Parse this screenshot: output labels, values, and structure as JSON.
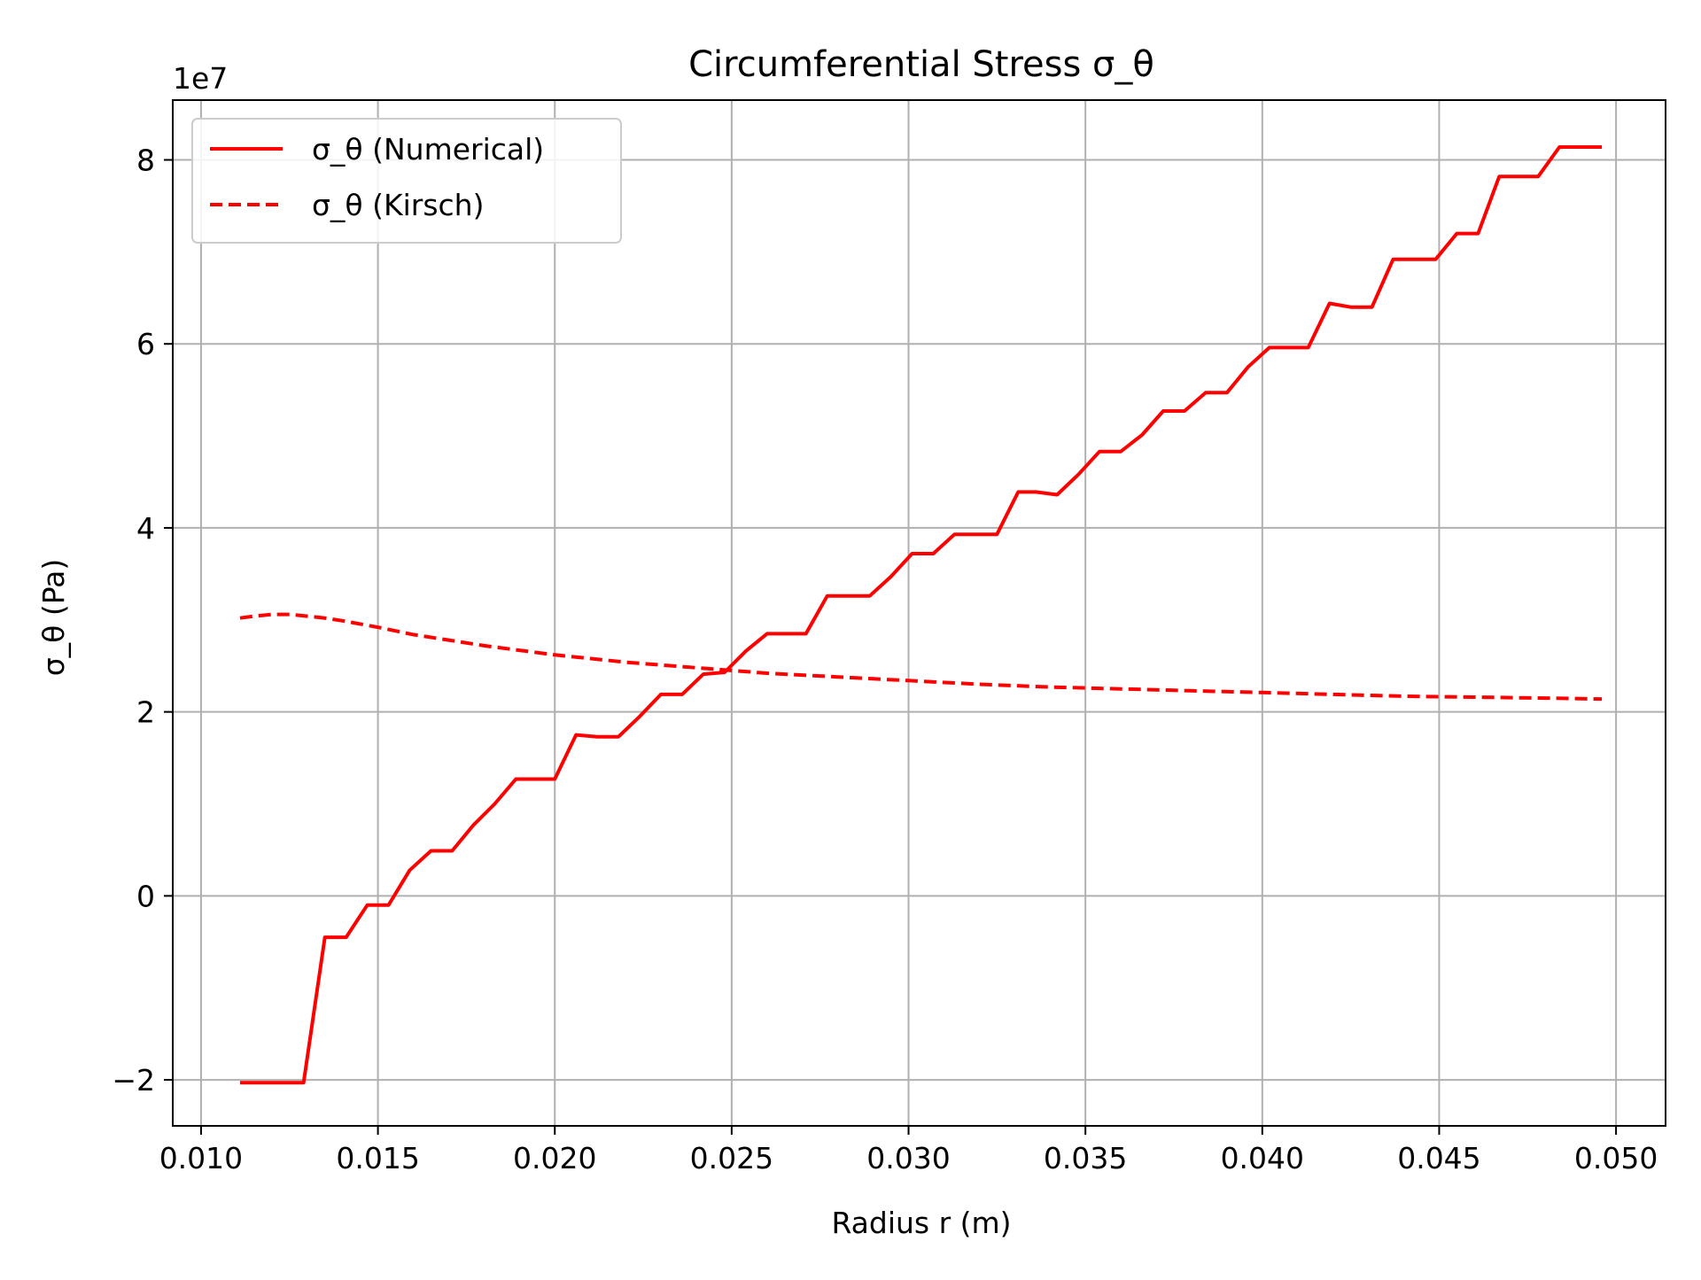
{
  "chart_data": {
    "type": "line",
    "title": "Circumferential Stress σ_θ",
    "xlabel": "Radius r (m)",
    "ylabel": "σ_θ (Pa)",
    "y_offset_label": "1e7",
    "y_scale": 10000000,
    "xlim": [
      0.0092,
      0.0514
    ],
    "ylim": [
      -25000000.0,
      86500000.0
    ],
    "x_ticks": [
      0.01,
      0.015,
      0.02,
      0.025,
      0.03,
      0.035,
      0.04,
      0.045,
      0.05
    ],
    "x_tick_labels": [
      "0.010",
      "0.015",
      "0.020",
      "0.025",
      "0.030",
      "0.035",
      "0.040",
      "0.045",
      "0.050"
    ],
    "y_ticks": [
      -20000000.0,
      0,
      20000000.0,
      40000000.0,
      60000000.0,
      80000000.0
    ],
    "y_tick_labels": [
      "−2",
      "0",
      "2",
      "4",
      "6",
      "8"
    ],
    "grid": true,
    "legend_position": "top-left",
    "series": [
      {
        "name": "σ_θ (Numerical)",
        "color": "#ff0000",
        "style": "solid",
        "x": [
          0.0111,
          0.0129,
          0.0135,
          0.0141,
          0.0147,
          0.0153,
          0.0159,
          0.0165,
          0.0171,
          0.0177,
          0.0183,
          0.0189,
          0.0195,
          0.02,
          0.0206,
          0.0212,
          0.0218,
          0.0224,
          0.023,
          0.0236,
          0.0242,
          0.0248,
          0.0254,
          0.026,
          0.0265,
          0.0271,
          0.0277,
          0.0283,
          0.0289,
          0.0295,
          0.0301,
          0.0307,
          0.0313,
          0.0319,
          0.0325,
          0.0331,
          0.0336,
          0.0342,
          0.0348,
          0.0354,
          0.036,
          0.0366,
          0.0372,
          0.0378,
          0.0384,
          0.039,
          0.0396,
          0.0402,
          0.0407,
          0.0413,
          0.0419,
          0.0425,
          0.0431,
          0.0437,
          0.0443,
          0.0449,
          0.0455,
          0.0461,
          0.0467,
          0.0472,
          0.0478,
          0.0484,
          0.049,
          0.0496
        ],
        "y": [
          -20300000,
          -20300000,
          -4500000,
          -4500000,
          -1000000,
          -1000000,
          2800000,
          4900000,
          4900000,
          7700000,
          10000000,
          12700000,
          12700000,
          12700000,
          17500000,
          17300000,
          17300000,
          19500000,
          21900000,
          21900000,
          24100000,
          24300000,
          26600000,
          28500000,
          28500000,
          28500000,
          32600000,
          32600000,
          32600000,
          34700000,
          37200000,
          37200000,
          39300000,
          39300000,
          39300000,
          43900000,
          43900000,
          43600000,
          45800000,
          48300000,
          48300000,
          50100000,
          52700000,
          52700000,
          54700000,
          54700000,
          57500000,
          59600000,
          59600000,
          59600000,
          64400000,
          64000000,
          64000000,
          69200000,
          69200000,
          69200000,
          72000000,
          72000000,
          78200000,
          78200000,
          78200000,
          81400000,
          81400000,
          81400000
        ]
      },
      {
        "name": "σ_θ (Kirsch)",
        "color": "#ff0000",
        "style": "dashed",
        "x": [
          0.0111,
          0.0115,
          0.012,
          0.0125,
          0.013,
          0.0135,
          0.014,
          0.015,
          0.016,
          0.017,
          0.018,
          0.019,
          0.02,
          0.021,
          0.022,
          0.023,
          0.024,
          0.025,
          0.026,
          0.027,
          0.028,
          0.029,
          0.03,
          0.032,
          0.034,
          0.036,
          0.038,
          0.04,
          0.042,
          0.044,
          0.046,
          0.048,
          0.0496
        ],
        "y": [
          30200000,
          30400000,
          30600000,
          30600000,
          30400000,
          30200000,
          29900000,
          29200000,
          28400000,
          27800000,
          27200000,
          26700000,
          26200000,
          25800000,
          25400000,
          25100000,
          24800000,
          24500000,
          24200000,
          24000000,
          23800000,
          23600000,
          23400000,
          23000000,
          22700000,
          22500000,
          22300000,
          22100000,
          21900000,
          21700000,
          21600000,
          21500000,
          21400000
        ]
      }
    ]
  }
}
